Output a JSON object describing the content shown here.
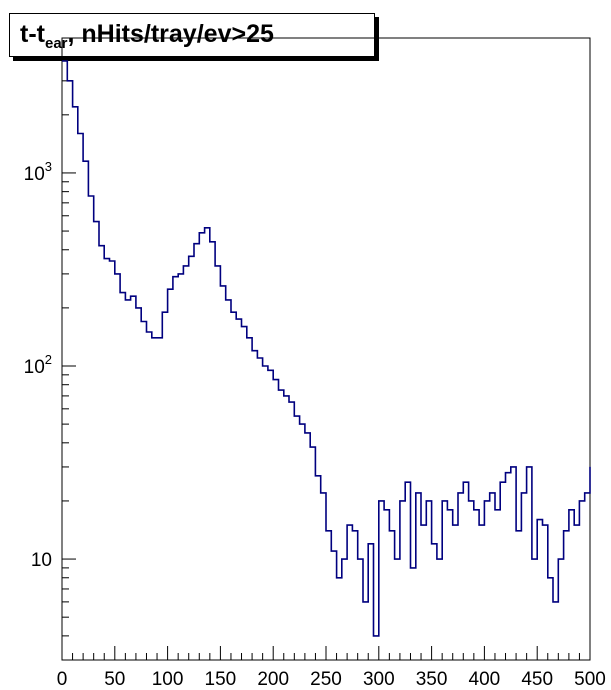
{
  "title": {
    "main": "t-t",
    "sub": "ear",
    "rest": ", nHits/tray/ev>25"
  },
  "colors": {
    "line": "#00007f",
    "axis": "#000000",
    "background": "#ffffff"
  },
  "chart_data": {
    "type": "line",
    "xlim": [
      0,
      500
    ],
    "ylim": [
      3,
      5000
    ],
    "ylog": true,
    "grid": false,
    "x_ticks": [
      "0",
      "50",
      "100",
      "150",
      "200",
      "250",
      "300",
      "350",
      "400",
      "450",
      "500"
    ],
    "y_ticks": [
      {
        "value": 10,
        "base": "10",
        "exp": ""
      },
      {
        "value": 100,
        "base": "10",
        "exp": "2"
      },
      {
        "value": 1000,
        "base": "10",
        "exp": "3"
      }
    ],
    "series": [
      {
        "x": [
          0,
          5,
          10,
          15,
          20,
          25,
          30,
          35,
          40,
          45,
          50,
          55,
          60,
          65,
          70,
          75,
          80,
          85,
          90,
          95,
          100,
          105,
          110,
          115,
          120,
          125,
          130,
          135,
          140,
          145,
          150,
          155,
          160,
          165,
          170,
          175,
          180,
          185,
          190,
          195,
          200,
          205,
          210,
          215,
          220,
          225,
          230,
          235,
          240,
          245,
          250,
          255,
          260,
          265,
          270,
          275,
          280,
          285,
          290,
          295,
          300,
          305,
          310,
          315,
          320,
          325,
          330,
          335,
          340,
          345,
          350,
          355,
          360,
          365,
          370,
          375,
          380,
          385,
          390,
          395,
          400,
          405,
          410,
          415,
          420,
          425,
          430,
          435,
          440,
          445,
          450,
          455,
          460,
          465,
          470,
          475,
          480,
          485,
          490,
          495,
          500
        ],
        "y": [
          3800,
          3000,
          2200,
          1600,
          1150,
          760,
          560,
          420,
          360,
          350,
          300,
          240,
          220,
          230,
          200,
          170,
          150,
          140,
          140,
          190,
          250,
          290,
          300,
          330,
          370,
          430,
          490,
          520,
          440,
          330,
          260,
          220,
          190,
          175,
          160,
          140,
          120,
          110,
          100,
          95,
          85,
          75,
          70,
          65,
          55,
          50,
          45,
          38,
          27,
          22,
          14,
          11,
          8,
          10,
          15,
          14,
          10,
          6,
          12,
          4,
          20,
          18,
          14,
          10,
          20,
          25,
          9,
          22,
          15,
          20,
          12,
          10,
          20,
          18,
          15,
          22,
          25,
          20,
          18,
          15,
          20,
          22,
          18,
          25,
          28,
          30,
          14,
          22,
          30,
          10,
          16,
          15,
          8,
          6,
          10,
          14,
          18,
          15,
          20,
          22,
          30
        ]
      }
    ]
  }
}
